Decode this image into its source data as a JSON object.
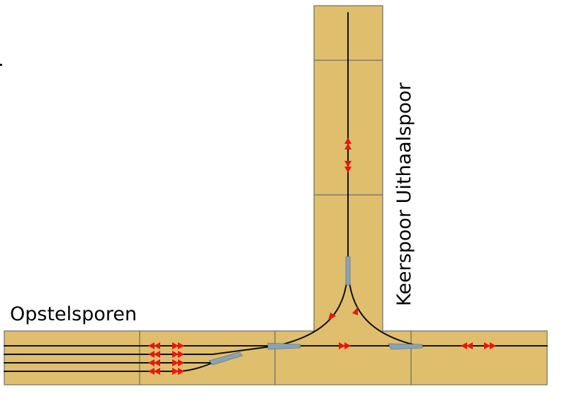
{
  "labels": {
    "left": "Opstelsporen",
    "vertical": "Keerspoor Uithaalspoor"
  },
  "colors": {
    "board": "#dfbe6e",
    "board_line": "#5a5a5a",
    "track": "#111111",
    "switch": "#8aa2b4",
    "arrow": "#e8170f",
    "background": "#ffffff"
  }
}
